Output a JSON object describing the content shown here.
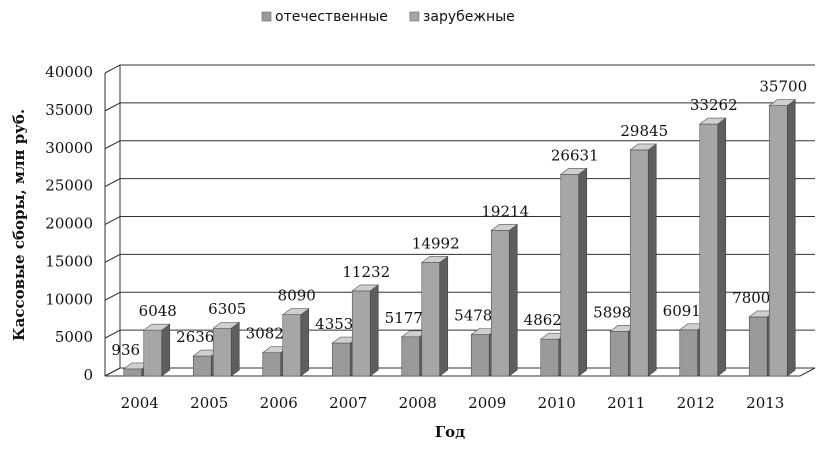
{
  "chart_data": {
    "type": "bar",
    "categories": [
      "2004",
      "2005",
      "2006",
      "2007",
      "2008",
      "2009",
      "2010",
      "2011",
      "2012",
      "2013"
    ],
    "series": [
      {
        "name": "отечественные",
        "color": "#9a9a9a",
        "values": [
          936,
          2636,
          3082,
          4353,
          5177,
          5478,
          4862,
          5898,
          6091,
          7800
        ]
      },
      {
        "name": "зарубежные",
        "color": "#a6a6a6",
        "values": [
          6048,
          6305,
          8090,
          11232,
          14992,
          19214,
          26631,
          29845,
          33262,
          35700
        ]
      }
    ],
    "ylabel": "Кассовые сборы, млн руб.",
    "xlabel": "Год",
    "ylim": [
      0,
      40000
    ],
    "yticks": [
      0,
      5000,
      10000,
      15000,
      20000,
      25000,
      30000,
      35000,
      40000
    ],
    "grid": true,
    "legend": "top"
  }
}
